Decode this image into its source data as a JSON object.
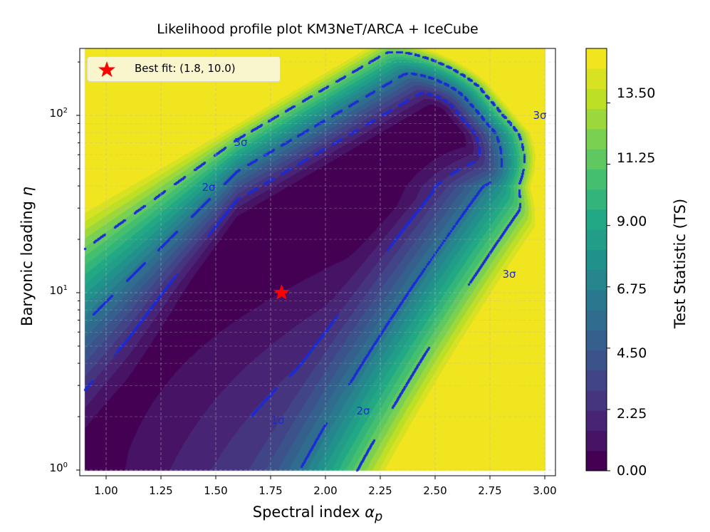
{
  "chart_data": {
    "type": "contour",
    "title": "Likelihood profile plot KM3NeT/ARCA + IceCube",
    "xlabel": {
      "text": "Spectral index",
      "symbol": "α",
      "sub": "p"
    },
    "ylabel": {
      "text": "Baryonic loading",
      "symbol": "η"
    },
    "x_range": [
      0.9,
      3.0
    ],
    "y_range": [
      1,
      240
    ],
    "y_scale": "log",
    "grid": true,
    "x_ticks": [
      "1.00",
      "1.25",
      "1.50",
      "1.75",
      "2.00",
      "2.25",
      "2.50",
      "2.75",
      "3.00"
    ],
    "y_ticks": [
      {
        "base": "10",
        "exp": "0"
      },
      {
        "base": "10",
        "exp": "1"
      },
      {
        "base": "10",
        "exp": "2"
      }
    ],
    "colormap": "viridis",
    "colorbar": {
      "label": "Test Statistic (TS)",
      "range": [
        0,
        14.75
      ],
      "level_step": 0.75,
      "ticks": [
        "0.00",
        "2.25",
        "4.50",
        "6.75",
        "9.00",
        "11.25",
        "13.50"
      ]
    },
    "contour_levels": [
      {
        "name": "1σ",
        "ts": 2.3
      },
      {
        "name": "2σ",
        "ts": 6.18
      },
      {
        "name": "3σ",
        "ts": 11.83
      }
    ],
    "contour_line_color": "#1a2bd6",
    "contour_labels": [
      "3σ",
      "3σ",
      "3σ",
      "2σ",
      "2σ",
      "1σ"
    ],
    "best_fit": {
      "x": 1.8,
      "y": 10.0,
      "color": "#ff0000",
      "marker": "star"
    },
    "legend": {
      "label": "Best fit: (1.8, 10.0)",
      "placement": "top-left"
    }
  }
}
